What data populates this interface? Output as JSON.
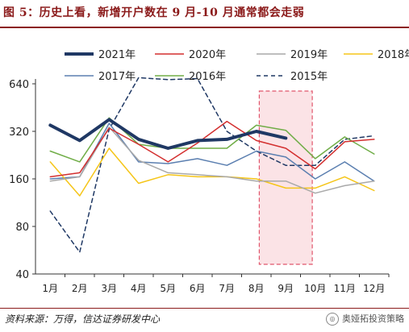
{
  "figure": {
    "title": "图 5：历史上看，新增开户数在 9 月-10 月通常都会走弱",
    "source": "资料来源：万得，信达证券研发中心",
    "watermark": "奥娅拓投资策略"
  },
  "chart_data": {
    "type": "line",
    "y_scale": "log",
    "ylim": [
      40,
      640
    ],
    "yticks": [
      40,
      80,
      160,
      320,
      640
    ],
    "categories": [
      "1月",
      "2月",
      "3月",
      "4月",
      "5月",
      "6月",
      "7月",
      "8月",
      "9月",
      "10月",
      "11月",
      "12月"
    ],
    "grid": false,
    "legend_position": "top",
    "highlight": {
      "from": "8月",
      "to": "10月",
      "fill": "#fbe3e6",
      "stroke": "#e0556b"
    },
    "series": [
      {
        "name": "2021年",
        "color": "#1f3864",
        "width": 4,
        "dash": "",
        "values": [
          350,
          280,
          380,
          285,
          250,
          280,
          285,
          320,
          290,
          null,
          null,
          null
        ]
      },
      {
        "name": "2020年",
        "color": "#d32f2f",
        "width": 1.5,
        "dash": "",
        "values": [
          165,
          175,
          335,
          265,
          205,
          270,
          370,
          280,
          250,
          185,
          275,
          285
        ]
      },
      {
        "name": "2019年",
        "color": "#a9a9a9",
        "width": 1.5,
        "dash": "",
        "values": [
          155,
          165,
          340,
          210,
          175,
          170,
          165,
          155,
          155,
          130,
          145,
          155
        ]
      },
      {
        "name": "2018年",
        "color": "#f5c518",
        "width": 1.5,
        "dash": "",
        "values": [
          205,
          125,
          250,
          150,
          170,
          165,
          165,
          160,
          140,
          140,
          165,
          135
        ]
      },
      {
        "name": "2017年",
        "color": "#5b7fb0",
        "width": 1.5,
        "dash": "",
        "values": [
          160,
          165,
          360,
          205,
          200,
          215,
          195,
          240,
          220,
          160,
          205,
          155
        ]
      },
      {
        "name": "2016年",
        "color": "#70ad47",
        "width": 1.5,
        "dash": "",
        "values": [
          240,
          205,
          390,
          265,
          250,
          250,
          250,
          350,
          325,
          215,
          295,
          230
        ]
      },
      {
        "name": "2015年",
        "color": "#1f3864",
        "width": 1.5,
        "dash": "5,4",
        "values": [
          100,
          55,
          330,
          700,
          680,
          690,
          320,
          240,
          195,
          195,
          285,
          300
        ]
      }
    ]
  }
}
